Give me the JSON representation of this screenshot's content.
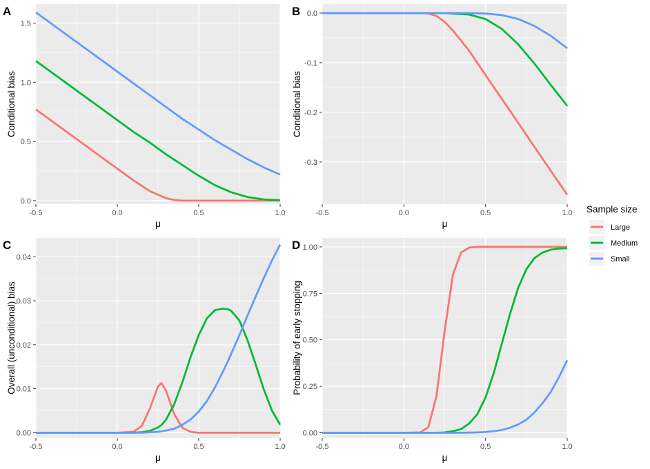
{
  "legend": {
    "title": "Sample size",
    "entries": [
      {
        "name": "Large",
        "color": "#F8766D"
      },
      {
        "name": "Medium",
        "color": "#00BA38"
      },
      {
        "name": "Small",
        "color": "#619CFF"
      }
    ]
  },
  "chart_data": [
    {
      "type": "line",
      "tag": "A",
      "xlabel": "μ",
      "ylabel": "Conditional bias",
      "xlim": [
        -0.5,
        1.0
      ],
      "ylim": [
        -0.03,
        1.66
      ],
      "xticks": [
        -0.5,
        0.0,
        0.5,
        1.0
      ],
      "xtick_labels": [
        "-0.5",
        "0.0",
        "0.5",
        "1.0"
      ],
      "yticks": [
        0.0,
        0.5,
        1.0,
        1.5
      ],
      "ytick_labels": [
        "0.0",
        "0.5",
        "1.0",
        "1.5"
      ],
      "grid": true,
      "x": [
        -0.5,
        -0.4,
        -0.3,
        -0.2,
        -0.1,
        0.0,
        0.1,
        0.2,
        0.3,
        0.35,
        0.4,
        0.5,
        0.6,
        0.7,
        0.8,
        0.9,
        1.0
      ],
      "series": [
        {
          "name": "Large",
          "values": [
            0.77,
            0.67,
            0.57,
            0.47,
            0.37,
            0.27,
            0.17,
            0.08,
            0.02,
            0.005,
            0.0,
            0.0,
            0.0,
            0.0,
            0.0,
            0.0,
            0.0
          ]
        },
        {
          "name": "Medium",
          "values": [
            1.18,
            1.08,
            0.98,
            0.88,
            0.78,
            0.68,
            0.58,
            0.49,
            0.39,
            0.345,
            0.3,
            0.21,
            0.13,
            0.07,
            0.03,
            0.01,
            0.003
          ]
        },
        {
          "name": "Small",
          "values": [
            1.59,
            1.49,
            1.39,
            1.29,
            1.19,
            1.09,
            0.99,
            0.89,
            0.79,
            0.74,
            0.69,
            0.6,
            0.51,
            0.43,
            0.35,
            0.28,
            0.22
          ]
        }
      ]
    },
    {
      "type": "line",
      "tag": "B",
      "xlabel": "μ",
      "ylabel": "Conditional bias",
      "xlim": [
        -0.5,
        1.0
      ],
      "ylim": [
        -0.385,
        0.018
      ],
      "xticks": [
        -0.5,
        0.0,
        0.5,
        1.0
      ],
      "xtick_labels": [
        "-0.5",
        "0.0",
        "0.5",
        "1.0"
      ],
      "yticks": [
        0.0,
        -0.1,
        -0.2,
        -0.3
      ],
      "ytick_labels": [
        "0.0",
        "-0.1",
        "-0.2",
        "-0.3"
      ],
      "grid": true,
      "x": [
        -0.5,
        -0.3,
        -0.1,
        0.0,
        0.1,
        0.15,
        0.2,
        0.25,
        0.3,
        0.4,
        0.5,
        0.6,
        0.7,
        0.8,
        0.9,
        1.0
      ],
      "series": [
        {
          "name": "Large",
          "values": [
            0.0,
            0.0,
            0.0,
            0.0,
            0.0,
            -0.001,
            -0.006,
            -0.018,
            -0.035,
            -0.076,
            -0.125,
            -0.173,
            -0.221,
            -0.27,
            -0.318,
            -0.366
          ]
        },
        {
          "name": "Medium",
          "values": [
            0.0,
            0.0,
            0.0,
            0.0,
            0.0,
            0.0,
            0.0,
            0.0,
            -0.001,
            -0.003,
            -0.012,
            -0.032,
            -0.063,
            -0.102,
            -0.145,
            -0.187
          ]
        },
        {
          "name": "Small",
          "values": [
            0.0,
            0.0,
            0.0,
            0.0,
            0.0,
            0.0,
            0.0,
            0.0,
            0.0,
            0.0,
            -0.001,
            -0.004,
            -0.012,
            -0.026,
            -0.046,
            -0.071
          ]
        }
      ]
    },
    {
      "type": "line",
      "tag": "C",
      "xlabel": "μ",
      "ylabel": "Overall (unconditional) bias",
      "xlim": [
        -0.5,
        1.0
      ],
      "ylim": [
        -0.0012,
        0.0443
      ],
      "xticks": [
        -0.5,
        0.0,
        0.5,
        1.0
      ],
      "xtick_labels": [
        "-0.5",
        "0.0",
        "0.5",
        "1.0"
      ],
      "yticks": [
        0.0,
        0.01,
        0.02,
        0.03,
        0.04
      ],
      "ytick_labels": [
        "0.00",
        "0.01",
        "0.02",
        "0.03",
        "0.04"
      ],
      "grid": true,
      "x": [
        -0.5,
        -0.2,
        0.0,
        0.1,
        0.15,
        0.2,
        0.25,
        0.27,
        0.3,
        0.35,
        0.4,
        0.45,
        0.5,
        0.55,
        0.6,
        0.65,
        0.68,
        0.7,
        0.75,
        0.8,
        0.85,
        0.9,
        0.95,
        1.0
      ],
      "series": [
        {
          "name": "Large",
          "values": [
            0.0,
            0.0,
            0.0,
            0.0002,
            0.0015,
            0.0055,
            0.0105,
            0.0113,
            0.0095,
            0.0042,
            0.0011,
            0.0002,
            0.0,
            0.0,
            0.0,
            0.0,
            0.0,
            0.0,
            0.0,
            0.0,
            0.0,
            0.0,
            0.0,
            0.0
          ]
        },
        {
          "name": "Medium",
          "values": [
            0.0,
            0.0,
            0.0,
            0.0,
            0.0001,
            0.0004,
            0.0012,
            0.0017,
            0.003,
            0.0065,
            0.0115,
            0.0172,
            0.0222,
            0.026,
            0.0279,
            0.0282,
            0.0281,
            0.0277,
            0.0255,
            0.021,
            0.0155,
            0.0098,
            0.005,
            0.0018
          ]
        },
        {
          "name": "Small",
          "values": [
            0.0,
            0.0,
            0.0,
            0.0,
            0.0,
            0.0001,
            0.0002,
            0.0003,
            0.0005,
            0.0009,
            0.0018,
            0.003,
            0.0048,
            0.0072,
            0.0103,
            0.014,
            0.0163,
            0.018,
            0.0222,
            0.0267,
            0.031,
            0.0352,
            0.0392,
            0.0428
          ]
        }
      ]
    },
    {
      "type": "line",
      "tag": "D",
      "xlabel": "μ",
      "ylabel": "Probability of early stopping",
      "xlim": [
        -0.5,
        1.0
      ],
      "ylim": [
        -0.028,
        1.048
      ],
      "xticks": [
        -0.5,
        0.0,
        0.5,
        1.0
      ],
      "xtick_labels": [
        "-0.5",
        "0.0",
        "0.5",
        "1.0"
      ],
      "yticks": [
        0.0,
        0.25,
        0.5,
        0.75,
        1.0
      ],
      "ytick_labels": [
        "0.00",
        "0.25",
        "0.50",
        "0.75",
        "1.00"
      ],
      "grid": true,
      "x": [
        -0.5,
        -0.2,
        0.0,
        0.1,
        0.15,
        0.2,
        0.25,
        0.3,
        0.35,
        0.4,
        0.45,
        0.5,
        0.55,
        0.6,
        0.65,
        0.7,
        0.75,
        0.8,
        0.85,
        0.9,
        0.95,
        1.0
      ],
      "series": [
        {
          "name": "Large",
          "values": [
            0.0,
            0.0,
            0.0,
            0.002,
            0.03,
            0.2,
            0.55,
            0.85,
            0.97,
            0.996,
            1.0,
            1.0,
            1.0,
            1.0,
            1.0,
            1.0,
            1.0,
            1.0,
            1.0,
            1.0,
            1.0,
            1.0
          ]
        },
        {
          "name": "Medium",
          "values": [
            0.0,
            0.0,
            0.0,
            0.0,
            0.0,
            0.0,
            0.002,
            0.008,
            0.02,
            0.05,
            0.1,
            0.19,
            0.32,
            0.48,
            0.64,
            0.78,
            0.88,
            0.94,
            0.97,
            0.985,
            0.991,
            0.993
          ]
        },
        {
          "name": "Small",
          "values": [
            0.0,
            0.0,
            0.0,
            0.0,
            0.0,
            0.0,
            0.0,
            0.0,
            0.0,
            0.001,
            0.002,
            0.004,
            0.008,
            0.015,
            0.027,
            0.045,
            0.07,
            0.11,
            0.16,
            0.22,
            0.3,
            0.39
          ]
        }
      ]
    }
  ]
}
